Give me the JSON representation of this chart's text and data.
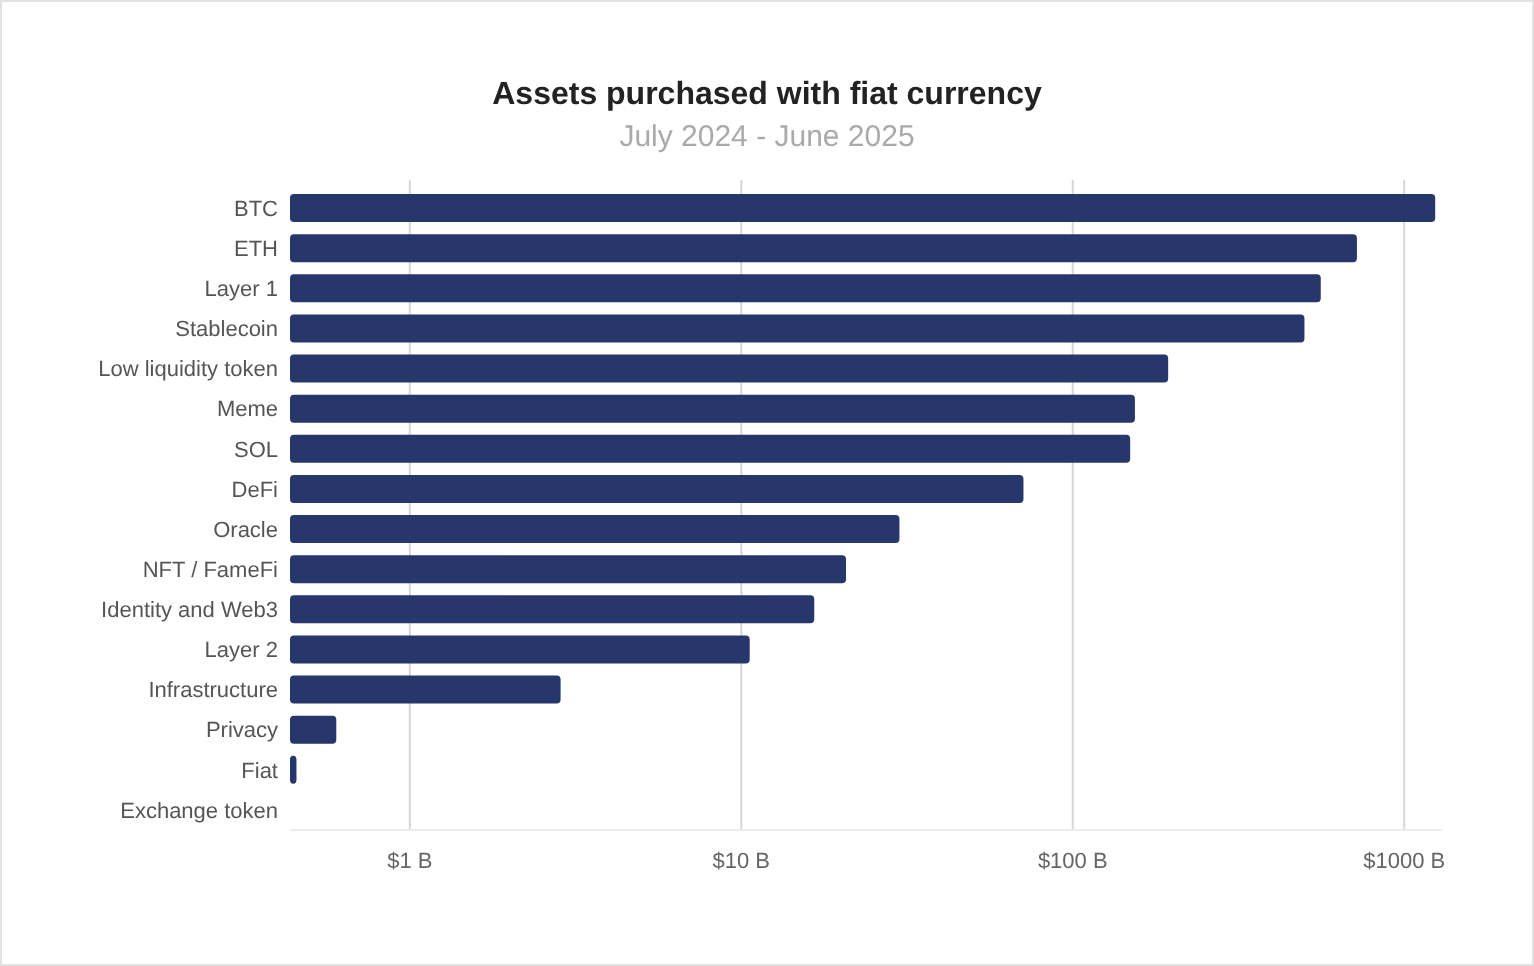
{
  "chart_data": {
    "type": "bar",
    "orientation": "horizontal",
    "log": "x",
    "title": "Assets purchased with fiat currency",
    "subtitle": "July 2024 - June 2025",
    "categories": [
      "BTC",
      "ETH",
      "Layer 1",
      "Stablecoin",
      "Low liquidity token",
      "Meme",
      "SOL",
      "DeFi",
      "Oracle",
      "NFT / FameFi",
      "Identity and Web3",
      "Layer 2",
      "Infrastructure",
      "Privacy",
      "Fiat",
      "Exchange token"
    ],
    "values": [
      1240,
      720,
      560,
      500,
      194,
      154,
      149,
      71,
      30,
      20.7,
      16.6,
      10.6,
      2.85,
      0.6,
      0.455,
      null
    ],
    "color": "#27366b",
    "xlim": [
      0.435,
      1300
    ],
    "xticks": [
      {
        "value": 1,
        "label": "$1 B"
      },
      {
        "value": 10,
        "label": "$10 B"
      },
      {
        "value": 100,
        "label": "$100 B"
      },
      {
        "value": 1000,
        "label": "$1000 B"
      }
    ],
    "grid": "x"
  }
}
